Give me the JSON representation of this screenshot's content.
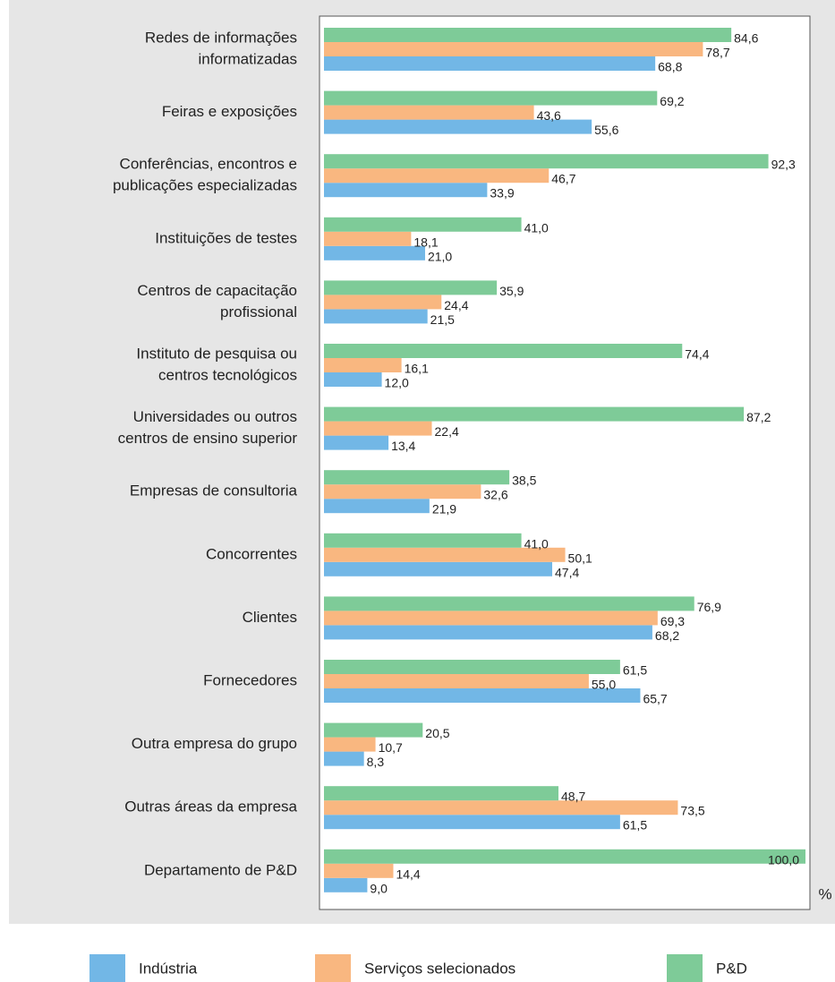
{
  "chart_data": {
    "type": "bar",
    "orientation": "horizontal",
    "categories": [
      [
        "Redes de informações",
        "informatizadas"
      ],
      [
        "Feiras e exposições"
      ],
      [
        "Conferências, encontros e",
        "publicações especializadas"
      ],
      [
        "Instituições de testes"
      ],
      [
        "Centros de capacitação",
        "profissional"
      ],
      [
        "Instituto de pesquisa ou",
        "centros tecnológicos"
      ],
      [
        "Universidades ou outros",
        "centros de ensino superior"
      ],
      [
        "Empresas de consultoria"
      ],
      [
        "Concorrentes"
      ],
      [
        "Clientes"
      ],
      [
        "Fornecedores"
      ],
      [
        "Outra empresa do grupo"
      ],
      [
        "Outras áreas da empresa"
      ],
      [
        "Departamento de P&D"
      ]
    ],
    "series": [
      {
        "name": "Indústria",
        "color": "#72b7e6",
        "values": [
          68.8,
          55.6,
          33.9,
          21.0,
          21.5,
          12.0,
          13.4,
          21.9,
          47.4,
          68.2,
          65.7,
          8.3,
          61.5,
          9.0
        ],
        "value_labels": [
          "68,8",
          "55,6",
          "33,9",
          "21,0",
          "21,5",
          "12,0",
          "13,4",
          "21,9",
          "47,4",
          "68,2",
          "65,7",
          "8,3",
          "61,5",
          "9,0"
        ]
      },
      {
        "name": "Serviços selecionados",
        "color": "#f9b780",
        "values": [
          78.7,
          43.6,
          46.7,
          18.1,
          24.4,
          16.1,
          22.4,
          32.6,
          50.1,
          69.3,
          55.0,
          10.7,
          73.5,
          14.4
        ],
        "value_labels": [
          "78,7",
          "43,6",
          "46,7",
          "18,1",
          "24,4",
          "16,1",
          "22,4",
          "32,6",
          "50,1",
          "69,3",
          "55,0",
          "10,7",
          "73,5",
          "14,4"
        ]
      },
      {
        "name": "P&D",
        "color": "#7ecb98",
        "values": [
          84.6,
          69.2,
          92.3,
          41.0,
          35.9,
          74.4,
          87.2,
          38.5,
          41.0,
          76.9,
          61.5,
          20.5,
          48.7,
          100.0
        ],
        "value_labels": [
          "84,6",
          "69,2",
          "92,3",
          "41,0",
          "35,9",
          "74,4",
          "87,2",
          "38,5",
          "41,0",
          "76,9",
          "61,5",
          "20,5",
          "48,7",
          "100,0"
        ]
      }
    ],
    "xlabel": "%",
    "xlim": [
      0,
      100
    ]
  }
}
